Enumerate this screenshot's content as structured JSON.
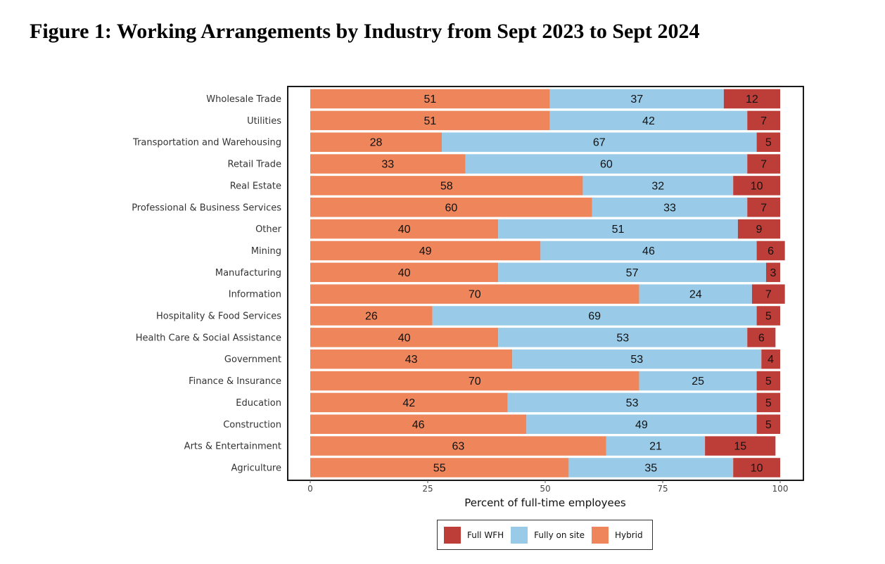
{
  "page_title": "Figure 1: Working Arrangements by Industry from Sept 2023 to Sept 2024",
  "chart_data": {
    "type": "bar",
    "orientation": "horizontal",
    "stacked": true,
    "title": "Figure 1: Working Arrangements by Industry from Sept 2023 to Sept 2024",
    "xlabel": "Percent of full-time employees",
    "ylabel": "",
    "xlim": [
      0,
      100
    ],
    "xticks": [
      0,
      25,
      50,
      75,
      100
    ],
    "categories": [
      "Wholesale Trade",
      "Utilities",
      "Transportation and Warehousing",
      "Retail Trade",
      "Real Estate",
      "Professional & Business Services",
      "Other",
      "Mining",
      "Manufacturing",
      "Information",
      "Hospitality & Food Services",
      "Health Care & Social Assistance",
      "Government",
      "Finance & Insurance",
      "Education",
      "Construction",
      "Arts & Entertainment",
      "Agriculture"
    ],
    "series": [
      {
        "name": "Hybrid",
        "color": "#EE855B",
        "values": [
          51,
          51,
          28,
          33,
          58,
          60,
          40,
          49,
          40,
          70,
          26,
          40,
          43,
          70,
          42,
          46,
          63,
          55
        ]
      },
      {
        "name": "Fully on site",
        "color": "#99CBE8",
        "values": [
          37,
          42,
          67,
          60,
          32,
          33,
          51,
          46,
          57,
          24,
          69,
          53,
          53,
          25,
          53,
          49,
          21,
          35
        ]
      },
      {
        "name": "Full WFH",
        "color": "#BD3E38",
        "values": [
          12,
          7,
          5,
          7,
          10,
          7,
          9,
          6,
          3,
          7,
          5,
          6,
          4,
          5,
          5,
          5,
          15,
          10
        ]
      }
    ],
    "legend": {
      "position": "bottom",
      "order": [
        "Full WFH",
        "Fully on site",
        "Hybrid"
      ]
    },
    "grid": false
  }
}
